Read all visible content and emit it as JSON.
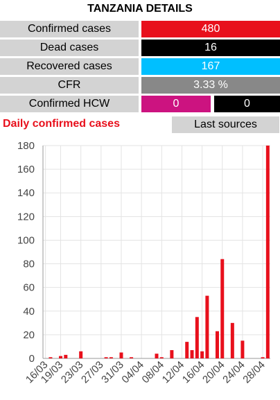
{
  "header": {
    "title": "TANZANIA DETAILS"
  },
  "stats": [
    {
      "label": "Confirmed cases",
      "value": 480,
      "color": "#e8101c"
    },
    {
      "label": "Dead cases",
      "value": 16,
      "color": "#000000"
    },
    {
      "label": "Recovered cases",
      "value": 167,
      "color": "#00bfff"
    },
    {
      "label": "CFR",
      "value": "3.33 %",
      "color": "#888888"
    }
  ],
  "hcw": {
    "label": "Confirmed HCW",
    "values": [
      0,
      0
    ],
    "colors": [
      "#cc1380",
      "#000000"
    ]
  },
  "button": "Last sources",
  "chart_data": {
    "type": "bar",
    "title": "Daily confirmed cases",
    "color": "#e8101c",
    "grid": true,
    "categories": [
      "16/03",
      null,
      null,
      "19/03",
      null,
      null,
      null,
      "23/03",
      null,
      null,
      null,
      "27/03",
      null,
      null,
      null,
      "31/03",
      null,
      null,
      null,
      "04/04",
      null,
      null,
      null,
      "08/04",
      null,
      null,
      null,
      "12/04",
      null,
      null,
      null,
      "16/04",
      null,
      null,
      null,
      "20/04",
      null,
      null,
      null,
      "24/04",
      null,
      null,
      null,
      "28/04",
      null
    ],
    "values": [
      0,
      1,
      0,
      2,
      3,
      0,
      0,
      6,
      0,
      0,
      0,
      0,
      1,
      1,
      0,
      5,
      0,
      1,
      0,
      0,
      0,
      0,
      4,
      1,
      0,
      7,
      0,
      0,
      14,
      7,
      35,
      6,
      53,
      0,
      23,
      84,
      0,
      30,
      0,
      15,
      0,
      0,
      0,
      1,
      180
    ],
    "ylim": [
      0,
      180
    ],
    "yticks": [
      0,
      20,
      40,
      60,
      80,
      100,
      120,
      140,
      160,
      180
    ]
  }
}
